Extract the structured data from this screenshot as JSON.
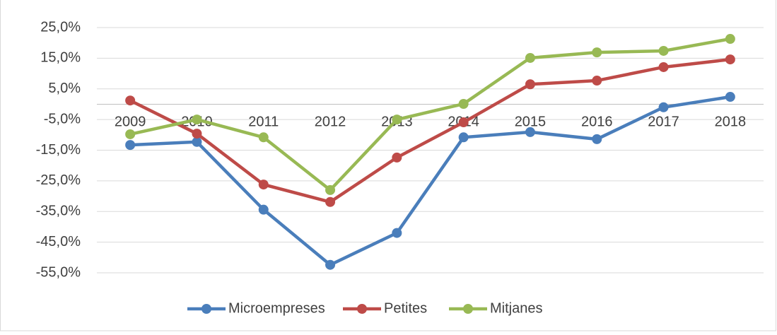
{
  "chart_data": {
    "type": "line",
    "categories": [
      "2009",
      "2010",
      "2011",
      "2012",
      "2013",
      "2014",
      "2015",
      "2016",
      "2017",
      "2018"
    ],
    "series": [
      {
        "name": "Microempreses",
        "color": "#4a7ebb",
        "values": [
          -13.3,
          -12.3,
          -34.4,
          -52.4,
          -42,
          -10.8,
          -9.1,
          -11.4,
          -1,
          2.4
        ]
      },
      {
        "name": "Petites",
        "color": "#be4b48",
        "values": [
          1.2,
          -9.6,
          -26.2,
          -31.9,
          -17.4,
          -5.9,
          6.5,
          7.7,
          12.1,
          14.6
        ]
      },
      {
        "name": "Mitjanes",
        "color": "#98b954",
        "values": [
          -9.8,
          -5,
          -10.8,
          -28,
          -5,
          0.1,
          15.1,
          16.9,
          17.4,
          21.3
        ]
      }
    ],
    "ylim": [
      -55,
      25
    ],
    "yticks": [
      {
        "value": 25,
        "label": "25,0%"
      },
      {
        "value": 15,
        "label": "15,0%"
      },
      {
        "value": 5,
        "label": "5,0%"
      },
      {
        "value": -5,
        "label": "-5,0%"
      },
      {
        "value": -15,
        "label": "-15,0%"
      },
      {
        "value": -25,
        "label": "-25,0%"
      },
      {
        "value": -35,
        "label": "-35,0%"
      },
      {
        "value": -45,
        "label": "-45,0%"
      },
      {
        "value": -55,
        "label": "-55,0%"
      }
    ],
    "grid": true,
    "legend": "bottom"
  }
}
